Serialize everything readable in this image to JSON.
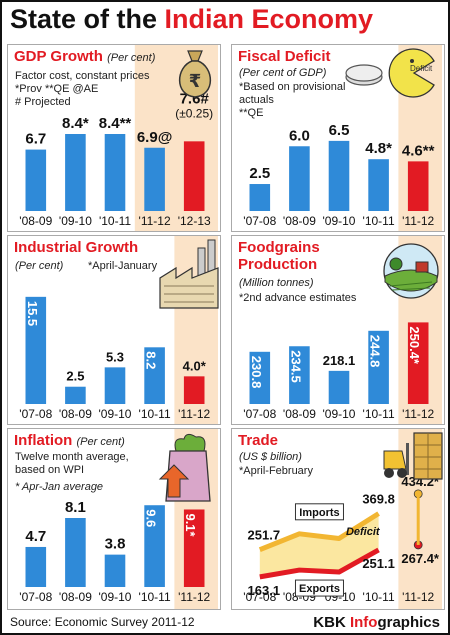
{
  "title_prefix": "State of the ",
  "title_highlight": "Indian Economy",
  "source": "Source: Economic Survey 2011-12",
  "brand_a": "KBK ",
  "brand_b": "Info",
  "brand_c": "graphics",
  "colors": {
    "bar": "#2f8ad8",
    "highlight": "#e21b23",
    "band": "#fbe3c8",
    "title": "#e21b23",
    "imports": "#f2b632",
    "exports": "#e21b23"
  },
  "panels": {
    "gdp": {
      "title": "GDP Growth",
      "unit": "(Per cent)",
      "notes": [
        "Factor cost, constant prices",
        "*Prov  **QE  @AE",
        "# Projected"
      ],
      "sub_annotation": "(±0.25)"
    },
    "fiscal": {
      "title": "Fiscal Deficit",
      "unit": "",
      "notes": [
        "(Per cent of GDP)",
        "*Based on provisional",
        "actuals",
        "**QE"
      ],
      "badge": "Deficit"
    },
    "industrial": {
      "title": "Industrial Growth",
      "unit": "",
      "notes": [
        "(Per cent)",
        "*April-January"
      ]
    },
    "food": {
      "title": "Foodgrains",
      "title2": "Production",
      "unit": "",
      "notes": [
        "(Million tonnes)",
        "*2nd advance estimates"
      ]
    },
    "inflation": {
      "title": "Inflation",
      "unit": "(Per cent)",
      "notes": [
        "Twelve month average,",
        "based on WPI",
        "* Apr-Jan average"
      ]
    },
    "trade": {
      "title": "Trade",
      "unit": "",
      "notes": [
        "(US $ billion)",
        "*April-February"
      ]
    }
  },
  "chart_data": [
    {
      "id": "gdp",
      "type": "bar",
      "title": "GDP Growth",
      "ylabel": "Per cent",
      "categories": [
        "'08-09",
        "'09-10",
        "'10-11",
        "'11-12",
        "'12-13"
      ],
      "values": [
        6.7,
        8.4,
        8.4,
        6.9,
        7.6
      ],
      "labels": [
        "6.7",
        "8.4*",
        "8.4**",
        "6.9@",
        "7.6#"
      ],
      "highlight_index": 4,
      "band_from_index": 3
    },
    {
      "id": "fiscal",
      "type": "bar",
      "title": "Fiscal Deficit",
      "ylabel": "Per cent of GDP",
      "categories": [
        "'07-08",
        "'08-09",
        "'09-10",
        "'10-11",
        "'11-12"
      ],
      "values": [
        2.5,
        6.0,
        6.5,
        4.8,
        4.6
      ],
      "labels": [
        "2.5",
        "6.0",
        "6.5",
        "4.8*",
        "4.6**"
      ],
      "highlight_index": 4,
      "band_from_index": 4
    },
    {
      "id": "industrial",
      "type": "bar",
      "title": "Industrial Growth",
      "ylabel": "Per cent",
      "categories": [
        "'07-08",
        "'08-09",
        "'09-10",
        "'10-11",
        "'11-12"
      ],
      "values": [
        15.5,
        2.5,
        5.3,
        8.2,
        4.0
      ],
      "labels": [
        "15.5",
        "2.5",
        "5.3",
        "8.2",
        "4.0*"
      ],
      "highlight_index": 4,
      "band_from_index": 4
    },
    {
      "id": "food",
      "type": "bar",
      "title": "Foodgrains Production",
      "ylabel": "Million tonnes",
      "categories": [
        "'07-08",
        "'08-09",
        "'09-10",
        "'10-11",
        "'11-12"
      ],
      "values": [
        230.8,
        234.5,
        218.1,
        244.8,
        250.4
      ],
      "labels": [
        "230.8",
        "234.5",
        "218.1",
        "244.8",
        "250.4*"
      ],
      "highlight_index": 4,
      "band_from_index": 4
    },
    {
      "id": "inflation",
      "type": "bar",
      "title": "Inflation",
      "ylabel": "Per cent",
      "categories": [
        "'07-08",
        "'08-09",
        "'09-10",
        "'10-11",
        "'11-12"
      ],
      "values": [
        4.7,
        8.1,
        3.8,
        9.6,
        9.1
      ],
      "labels": [
        "4.7",
        "8.1",
        "3.8",
        "9.6",
        "9.1*"
      ],
      "highlight_index": 4,
      "band_from_index": 4
    },
    {
      "id": "trade",
      "type": "line",
      "title": "Trade",
      "ylabel": "US $ billion",
      "categories": [
        "'07-08",
        "'08-09",
        "'09-10",
        "'10-11",
        "'11-12"
      ],
      "series": [
        {
          "name": "Imports",
          "values": [
            251.7,
            303.7,
            288.4,
            369.8,
            434.2
          ],
          "color": "#f2b632"
        },
        {
          "name": "Exports",
          "values": [
            163.1,
            185.3,
            178.8,
            251.1,
            267.4
          ],
          "color": "#e21b23"
        }
      ],
      "point_labels": {
        "Imports": [
          "251.7",
          "",
          "",
          "369.8",
          "434.2*"
        ],
        "Exports": [
          "163.1",
          "",
          "",
          "251.1",
          "267.4*"
        ]
      },
      "annotation": "Deficit",
      "band_from_index": 4
    }
  ]
}
